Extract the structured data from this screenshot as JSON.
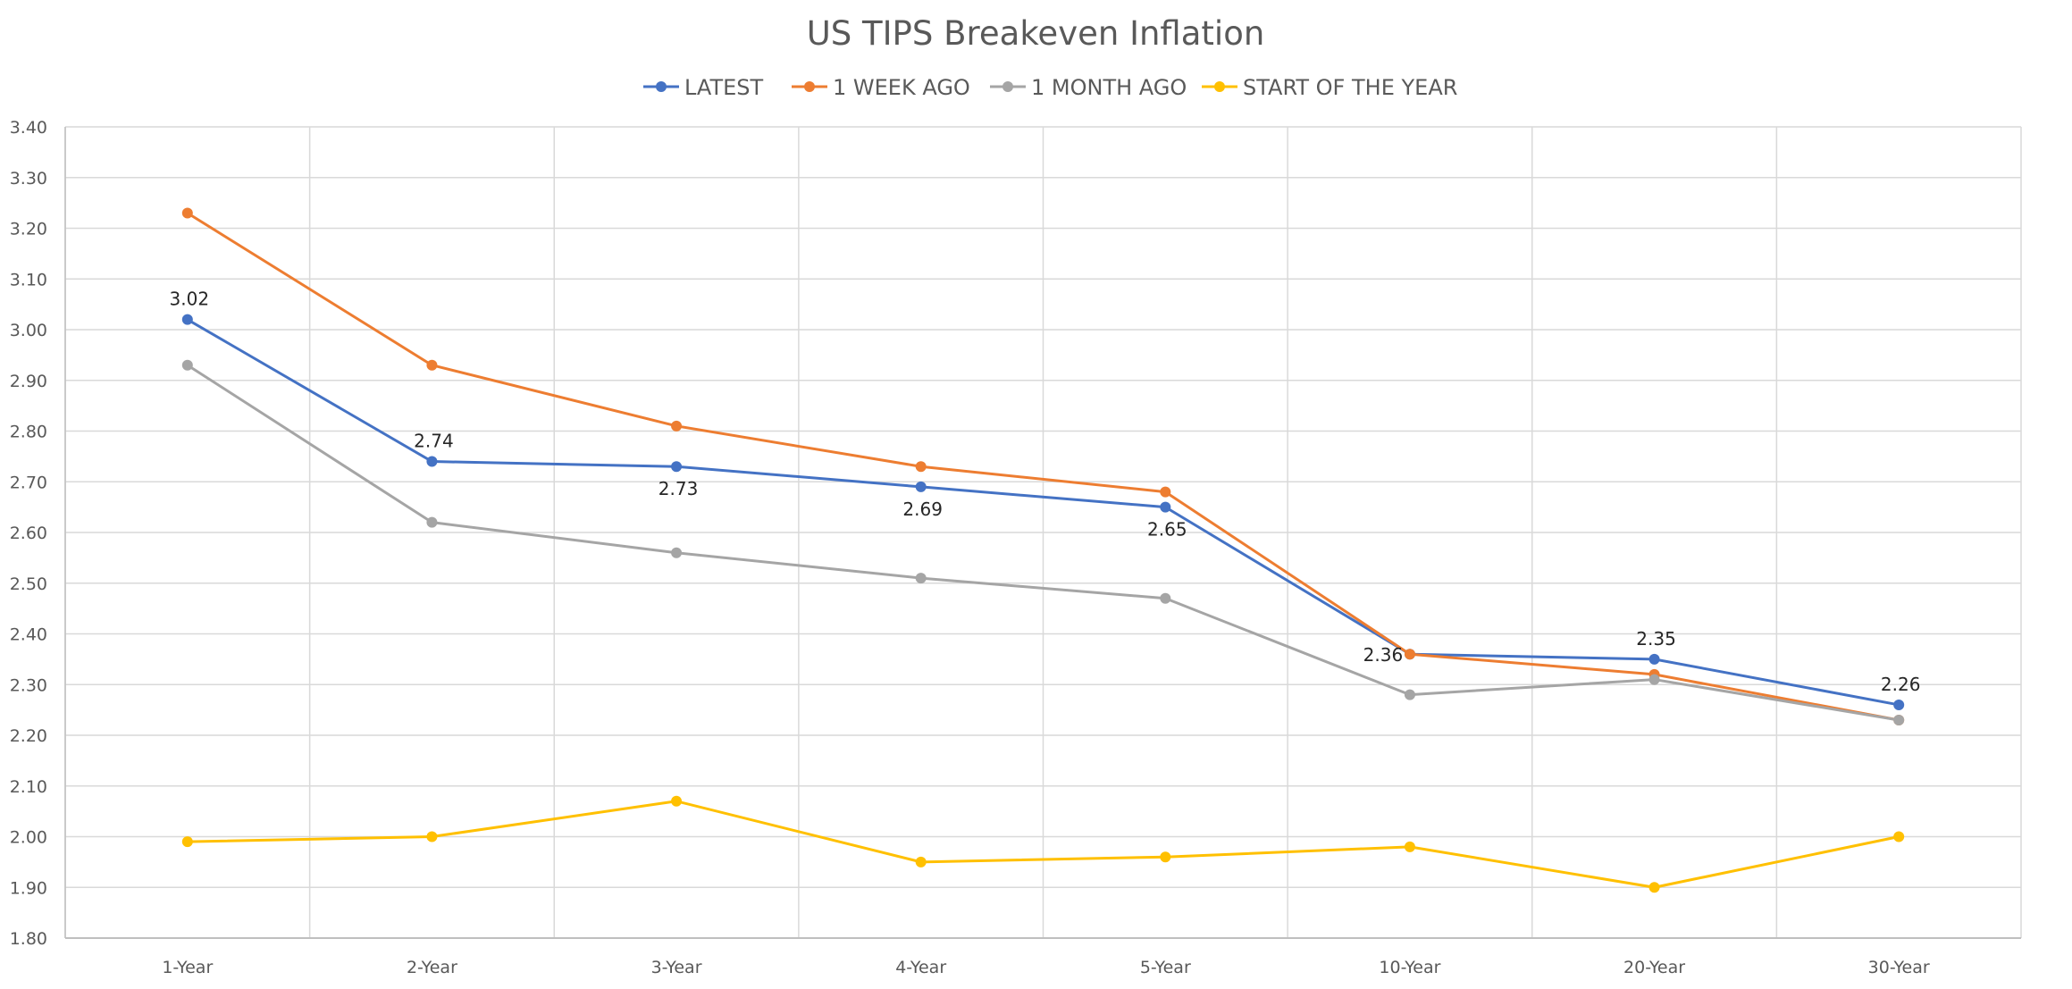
{
  "chart_data": {
    "type": "line",
    "title": "US TIPS Breakeven Inflation",
    "xlabel": "",
    "ylabel": "",
    "categories": [
      "1-Year",
      "2-Year",
      "3-Year",
      "4-Year",
      "5-Year",
      "10-Year",
      "20-Year",
      "30-Year"
    ],
    "ylim": [
      1.8,
      3.4
    ],
    "y_ticks": [
      "1.80",
      "1.90",
      "2.00",
      "2.10",
      "2.20",
      "2.30",
      "2.40",
      "2.50",
      "2.60",
      "2.70",
      "2.80",
      "2.90",
      "3.00",
      "3.10",
      "3.20",
      "3.30",
      "3.40"
    ],
    "grid": true,
    "legend_position": "top",
    "series": [
      {
        "name": "LATEST",
        "color": "#4472C4",
        "values": [
          3.02,
          2.74,
          2.73,
          2.69,
          2.65,
          2.36,
          2.35,
          2.26
        ],
        "data_labels": [
          "3.02",
          "2.74",
          "2.73",
          "2.69",
          "2.65",
          "2.36",
          "2.35",
          "2.26"
        ]
      },
      {
        "name": "1 WEEK AGO",
        "color": "#ED7D31",
        "values": [
          3.23,
          2.93,
          2.81,
          2.73,
          2.68,
          2.36,
          2.32,
          2.23
        ]
      },
      {
        "name": "1 MONTH AGO",
        "color": "#A5A5A5",
        "values": [
          2.93,
          2.62,
          2.56,
          2.51,
          2.47,
          2.28,
          2.31,
          2.23
        ]
      },
      {
        "name": "START OF THE YEAR",
        "color": "#FFC000",
        "values": [
          1.99,
          2.0,
          2.07,
          1.95,
          1.96,
          1.98,
          1.9,
          2.0
        ]
      }
    ]
  }
}
